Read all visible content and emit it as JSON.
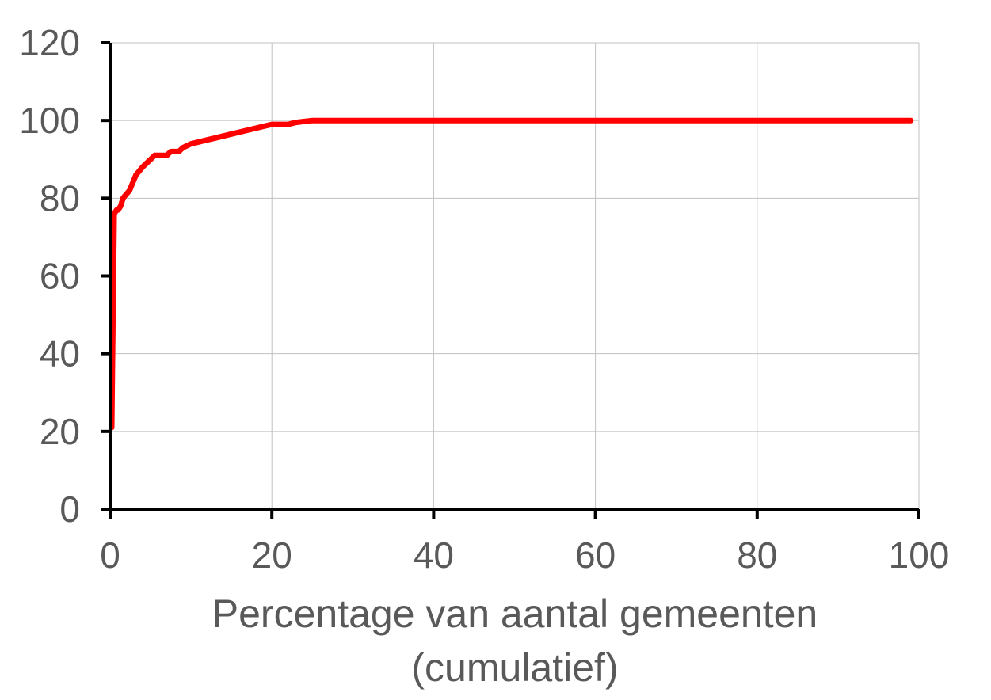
{
  "chart_data": {
    "type": "line",
    "title": "",
    "xlabel": "Percentage van aantal gemeenten",
    "xlabel_line2": "(cumulatief)",
    "ylabel": "",
    "xlim": [
      0,
      100
    ],
    "ylim": [
      0,
      120
    ],
    "x_ticks": [
      "0",
      "20",
      "40",
      "60",
      "80",
      "100"
    ],
    "y_ticks": [
      "0",
      "20",
      "40",
      "60",
      "80",
      "100",
      "120"
    ],
    "grid": true,
    "legend": "none",
    "series": [
      {
        "color": "#ff0000",
        "x": [
          0.2,
          0.5,
          0.8,
          1.0,
          1.3,
          1.6,
          2.0,
          2.4,
          2.8,
          3.2,
          3.6,
          4.0,
          4.5,
          5.0,
          5.5,
          6.0,
          6.5,
          7.0,
          7.5,
          8.0,
          8.5,
          9.0,
          9.5,
          10.0,
          11.0,
          12.0,
          13.0,
          14.0,
          15.0,
          16.0,
          17.0,
          18.0,
          19.0,
          20.0,
          21.0,
          22.0,
          23.0,
          25.0,
          30.0,
          40.0,
          50.0,
          60.0,
          70.0,
          80.0,
          90.0,
          99.0
        ],
        "y": [
          21,
          76,
          77,
          77,
          78,
          80,
          81,
          82,
          84,
          86,
          87,
          88,
          89,
          90,
          91,
          91,
          91,
          91,
          92,
          92,
          92,
          93,
          93.5,
          94,
          94.5,
          95,
          95.5,
          96,
          96.5,
          97,
          97.5,
          98,
          98.5,
          99,
          99,
          99,
          99.5,
          100,
          100,
          100,
          100,
          100,
          100,
          100,
          100,
          100
        ]
      }
    ]
  },
  "colors": {
    "line": "#ff0000",
    "axis": "#000000",
    "grid": "#c0c0c0",
    "text": "#595959"
  }
}
